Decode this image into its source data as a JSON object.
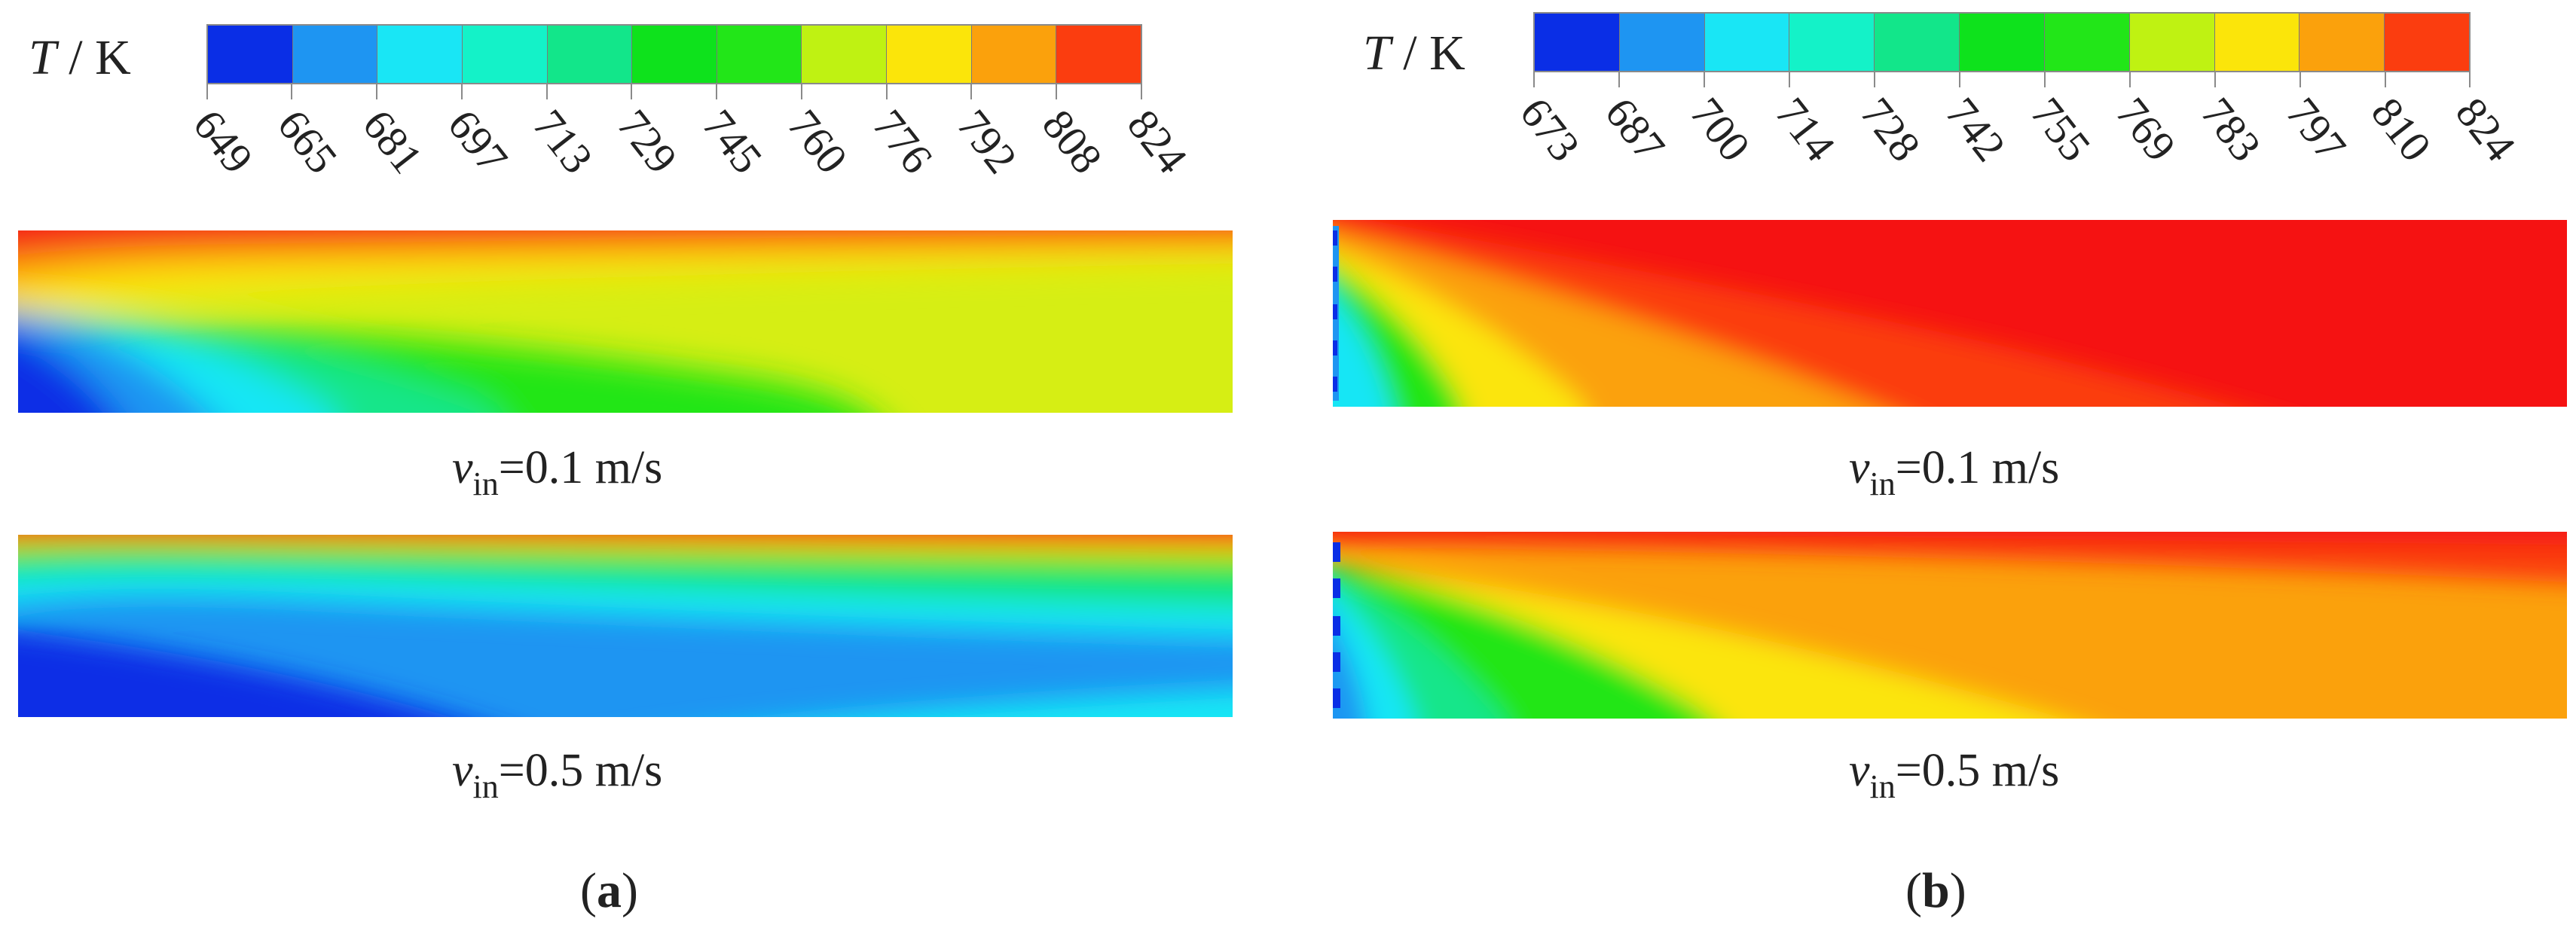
{
  "colors": {
    "palette": [
      "#0a2ee6",
      "#1e95f2",
      "#19e6f5",
      "#14f2c8",
      "#12e68a",
      "#0ee21c",
      "#22e618",
      "#bff212",
      "#fbe50a",
      "#fba10c",
      "#fb3d0f",
      "#f51212"
    ]
  },
  "panels": [
    {
      "id": "a",
      "legend": {
        "variable": "T",
        "slash": "/",
        "unit": "K"
      },
      "colorbar_ticks": [
        "649",
        "665",
        "681",
        "697",
        "713",
        "729",
        "745",
        "760",
        "776",
        "792",
        "808",
        "824"
      ],
      "fields": [
        {
          "caption": {
            "symbol": "v",
            "subscript": "in",
            "value": "=0.1 m/s"
          }
        },
        {
          "caption": {
            "symbol": "v",
            "subscript": "in",
            "value": "=0.5 m/s"
          }
        }
      ],
      "panel_label": {
        "open": "(",
        "letter": "a",
        "close": ")"
      }
    },
    {
      "id": "b",
      "legend": {
        "variable": "T",
        "slash": "/",
        "unit": "K"
      },
      "colorbar_ticks": [
        "673",
        "687",
        "700",
        "714",
        "728",
        "742",
        "755",
        "769",
        "783",
        "797",
        "810",
        "824"
      ],
      "fields": [
        {
          "caption": {
            "symbol": "v",
            "subscript": "in",
            "value": "=0.1 m/s"
          }
        },
        {
          "caption": {
            "symbol": "v",
            "subscript": "in",
            "value": "=0.5 m/s"
          }
        }
      ],
      "panel_label": {
        "open": "(",
        "letter": "b",
        "close": ")"
      }
    }
  ]
}
